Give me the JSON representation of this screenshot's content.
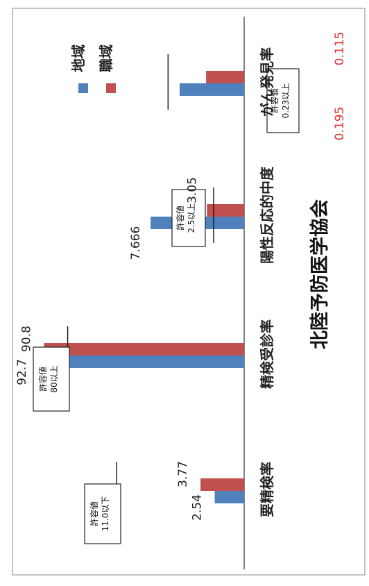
{
  "chart_data": {
    "type": "bar",
    "orientation": "horizontal",
    "title": "北陸予防医学協会",
    "categories": [
      "要精検率",
      "精検受診率",
      "陽性反応的中度",
      "がん発見率"
    ],
    "series": [
      {
        "name": "地域",
        "color": "#4f81bd",
        "values": [
          2.54,
          92.7,
          7.666,
          0.195
        ]
      },
      {
        "name": "職域",
        "color": "#c0504d",
        "values": [
          3.77,
          90.8,
          3.05,
          0.115
        ]
      }
    ],
    "value_labels": [
      [
        "2.54",
        "92.7",
        "7.666",
        "0.195"
      ],
      [
        "3.77",
        "90.8",
        "3.05",
        "0.115"
      ]
    ],
    "thresholds": [
      {
        "value": 11.0,
        "text": [
          "許容値",
          "11.0以下"
        ]
      },
      {
        "value": 80,
        "text": [
          "許容値",
          "80以上"
        ]
      },
      {
        "value": 2.5,
        "text": [
          "許容値",
          "2.5以上"
        ]
      },
      {
        "value": 0.23,
        "text": [
          "許容値",
          "0.23以上"
        ]
      }
    ],
    "legend_position": "top-right",
    "grid": false
  }
}
